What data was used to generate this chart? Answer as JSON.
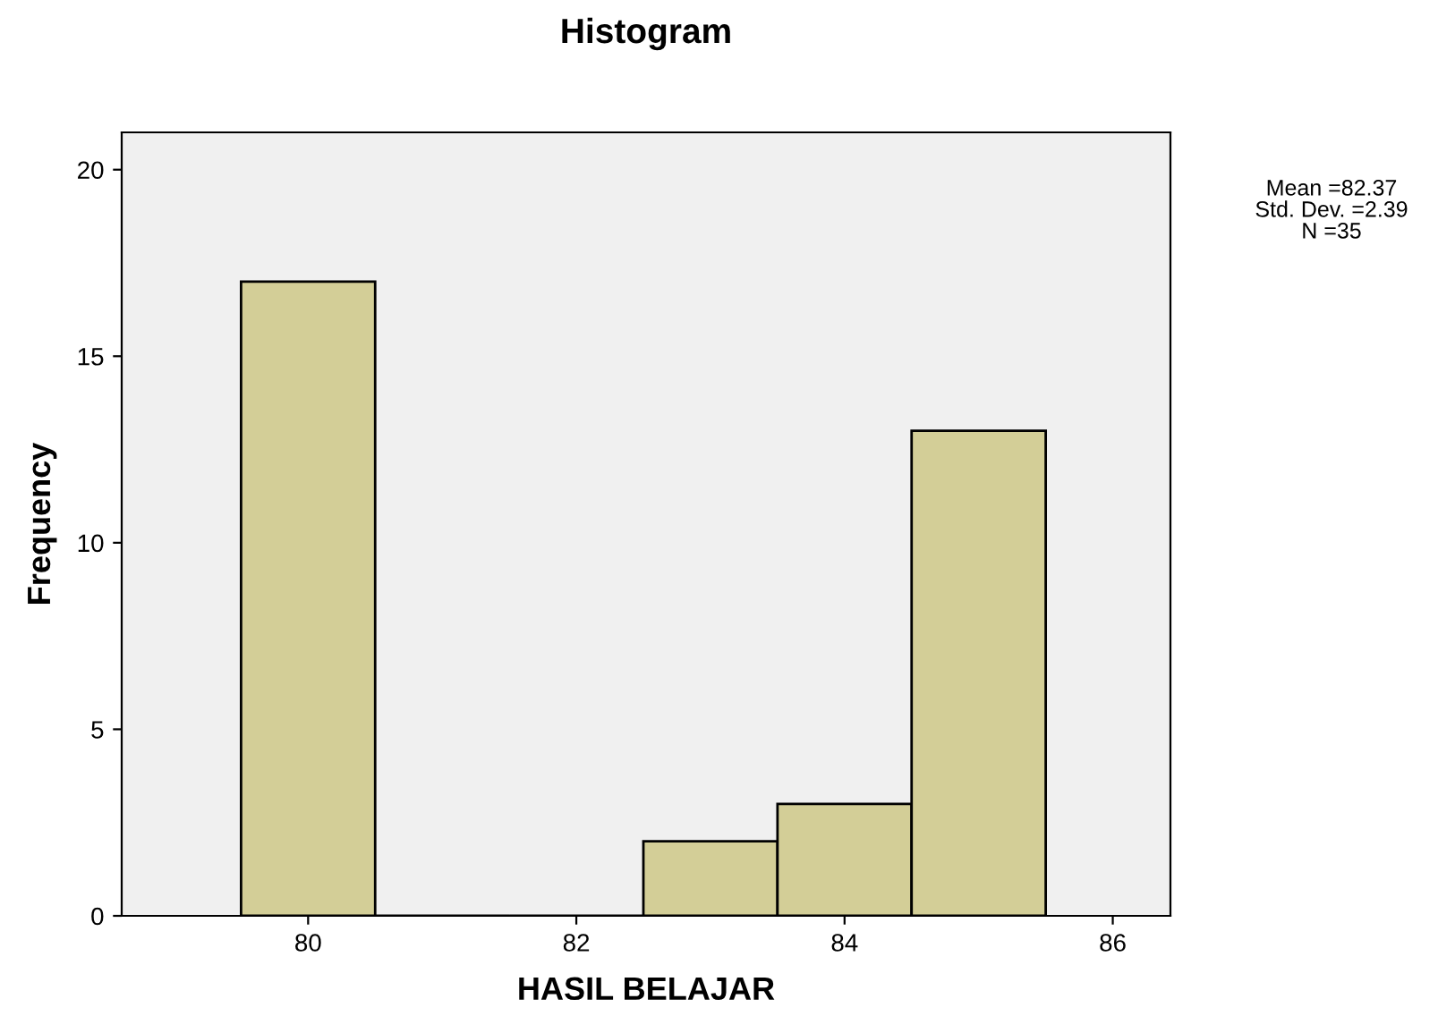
{
  "chart_data": {
    "type": "histogram",
    "title": "Histogram",
    "xlabel": "HASIL BELAJAR",
    "ylabel": "Frequency",
    "bins": [
      79.5,
      80.5,
      81.5,
      82.5,
      83.5,
      84.5,
      85.5
    ],
    "values": [
      17,
      0,
      0,
      2,
      3,
      13
    ],
    "color": "#d3ce97",
    "xlim": [
      78.61,
      86.43
    ],
    "xticks": [
      80,
      82,
      84,
      86
    ],
    "ylim": [
      0,
      21
    ],
    "yticks": [
      0,
      5,
      10,
      15,
      20
    ],
    "grid": false,
    "legend": false,
    "annotations": [
      "Mean =82.37",
      "Std. Dev. =2.39",
      "N =35"
    ]
  }
}
